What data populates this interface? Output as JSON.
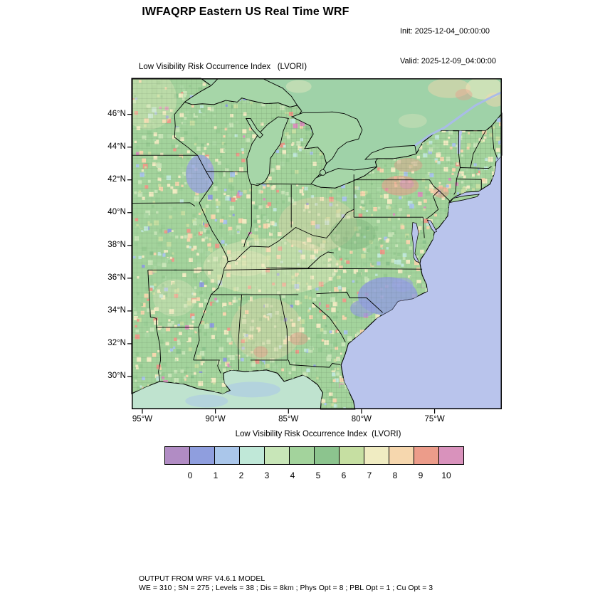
{
  "header": {
    "title": "IWFAQRP Eastern US Real Time WRF",
    "init_line": "Init: 2025-12-04_00:00:00",
    "valid_line": "Valid: 2025-12-09_04:00:00"
  },
  "map": {
    "title": "Low Visibility Risk Occurrence Index   (LVORI)",
    "lat_tick_labels": [
      "46°N",
      "44°N",
      "42°N",
      "40°N",
      "38°N",
      "36°N",
      "34°N",
      "32°N",
      "30°N"
    ],
    "lat_tick_values": [
      46,
      44,
      42,
      40,
      38,
      36,
      34,
      32,
      30
    ],
    "lon_tick_labels": [
      "95°W",
      "90°W",
      "85°W",
      "80°W",
      "75°W"
    ],
    "lon_tick_values": [
      -95,
      -90,
      -85,
      -80,
      -75
    ],
    "colors": {
      "land": "#a3d39c",
      "canada": "#9fd2a8",
      "atlantic": "#b9c4ec",
      "gulf": "#bfe3cf",
      "lake": "#a6d6a8"
    }
  },
  "colorbar": {
    "title": "Low Visibility Risk Occurrence Index  (LVORI)",
    "tick_labels": [
      "0",
      "1",
      "2",
      "3",
      "4",
      "5",
      "6",
      "7",
      "8",
      "9",
      "10"
    ],
    "colors": [
      "#b18cc4",
      "#8f9ede",
      "#aac6ea",
      "#c0e8d8",
      "#c8e6b8",
      "#a3d39c",
      "#8cc48e",
      "#c6dfa2",
      "#f0ecc2",
      "#f6d7ae",
      "#ec9c8a",
      "#d992bc"
    ]
  },
  "footer": {
    "line1": "OUTPUT FROM WRF V4.6.1 MODEL",
    "line2": "WE = 310 ; SN = 275 ; Levels = 38 ; Dis = 8km ; Phys Opt = 8 ; PBL Opt = 1 ; Cu Opt = 3"
  }
}
